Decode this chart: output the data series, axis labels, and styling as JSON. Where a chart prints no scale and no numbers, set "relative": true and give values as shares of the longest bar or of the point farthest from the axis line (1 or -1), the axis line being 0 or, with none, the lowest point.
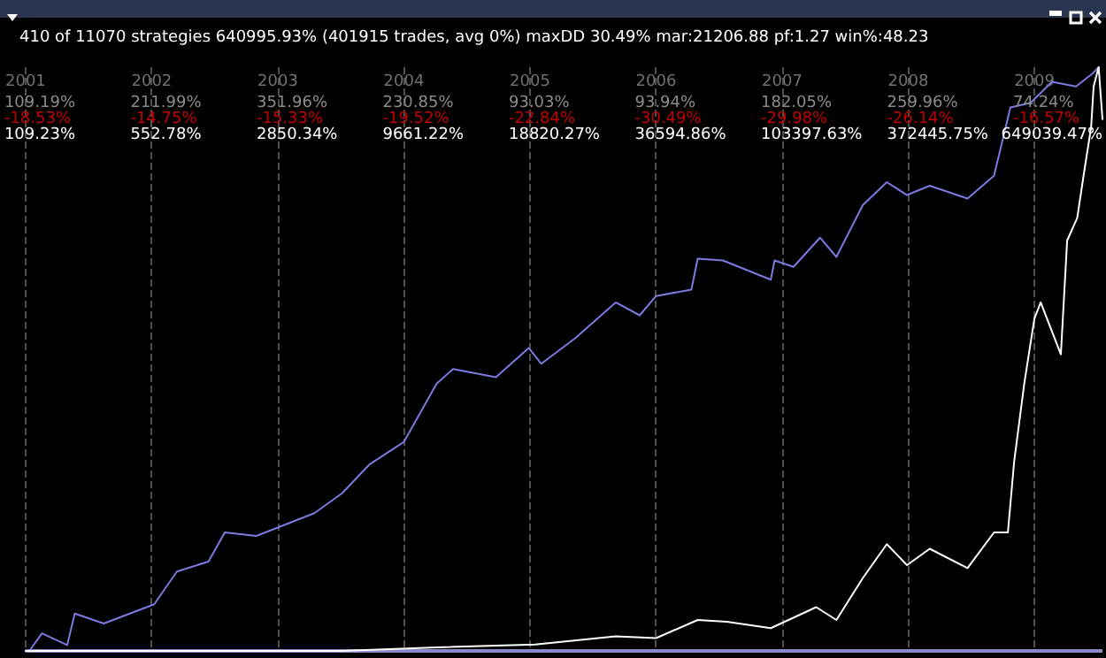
{
  "chart_data": {
    "type": "line",
    "relative": true,
    "title": "410 of 11070 strategies 640995.93% (401915 trades, avg 0%) maxDD 30.49% mar:21206.88 pf:1.27 win%:48.23",
    "xlim": [
      2001,
      2009.54
    ],
    "xticks": [
      2001,
      2002,
      2003,
      2004,
      2005,
      2006,
      2007,
      2008,
      2009
    ],
    "tick_labels": "x",
    "grid": "x",
    "marker": "none",
    "line_style": "solid",
    "annotations": [
      "109.19%",
      "-18.53%",
      "109.23%",
      "211.99%",
      "-14.75%",
      "552.78%",
      "351.96%",
      "-15.33%",
      "2850.34%",
      "230.85%",
      "-19.52%",
      "9661.22%",
      "93.03%",
      "-22.84%",
      "18820.27%",
      "93.94%",
      "-30.49%",
      "36594.86%",
      "182.05%",
      "-29.98%",
      "103397.63%",
      "259.96%",
      "-26.14%",
      "372445.75%",
      "74.24%",
      "-16.57%",
      "649039.47%"
    ],
    "series": [
      {
        "color": "#7a7ae0",
        "x": [
          2001.0,
          2001.03,
          2001.13,
          2001.33,
          2001.39,
          2001.62,
          2002.02,
          2002.2,
          2002.45,
          2002.58,
          2002.83,
          2003.29,
          2003.51,
          2003.73,
          2004.0,
          2004.26,
          2004.39,
          2004.73,
          2004.99,
          2005.09,
          2005.36,
          2005.68,
          2005.87,
          2006.0,
          2006.28,
          2006.33,
          2006.53,
          2006.91,
          2006.94,
          2007.09,
          2007.3,
          2007.43,
          2007.64,
          2007.83,
          2007.99,
          2008.17,
          2008.47,
          2008.68,
          2008.81,
          2008.97,
          2009.14,
          2009.33,
          2009.46,
          2009.51
        ],
        "values": [
          0,
          0.0,
          0.03,
          0.01,
          0.064,
          0.047,
          0.08,
          0.136,
          0.153,
          0.203,
          0.197,
          0.236,
          0.27,
          0.32,
          0.358,
          0.458,
          0.483,
          0.469,
          0.519,
          0.492,
          0.536,
          0.597,
          0.575,
          0.608,
          0.619,
          0.672,
          0.669,
          0.636,
          0.669,
          0.658,
          0.708,
          0.675,
          0.764,
          0.803,
          0.781,
          0.797,
          0.775,
          0.814,
          0.931,
          0.939,
          0.975,
          0.967,
          0.989,
          1
        ]
      },
      {
        "color": "#ffffff",
        "x": [
          2001.0,
          2003.51,
          2004.26,
          2005.04,
          2005.68,
          2006.0,
          2006.33,
          2006.56,
          2006.91,
          2007.27,
          2007.43,
          2007.64,
          2007.83,
          2007.99,
          2008.17,
          2008.47,
          2008.68,
          2008.79,
          2008.84,
          2008.92,
          2009.0,
          2009.05,
          2009.21,
          2009.26,
          2009.34,
          2009.39,
          2009.45,
          2009.47,
          2009.51,
          2009.54
        ],
        "values": [
          0,
          0,
          0.006,
          0.011,
          0.025,
          0.022,
          0.053,
          0.05,
          0.039,
          0.075,
          0.053,
          0.125,
          0.183,
          0.147,
          0.175,
          0.142,
          0.203,
          0.203,
          0.325,
          0.458,
          0.569,
          0.597,
          0.508,
          0.703,
          0.742,
          0.814,
          0.897,
          0.967,
          1,
          0.911
        ]
      }
    ]
  }
}
